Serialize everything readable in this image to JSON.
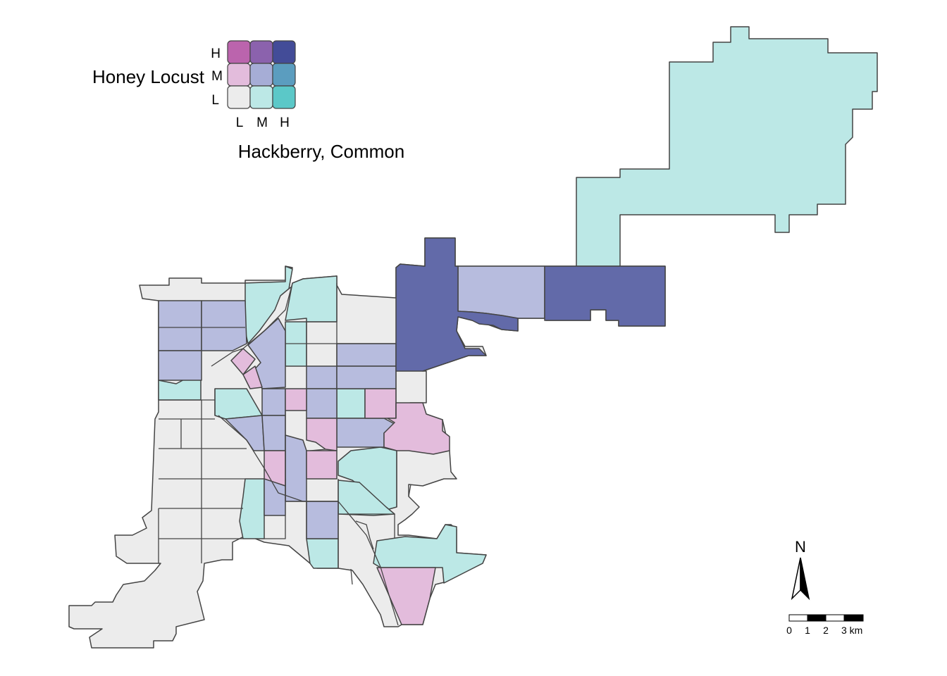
{
  "legend": {
    "y_variable": "Honey Locust",
    "x_variable": "Hackberry, Common",
    "y_levels": [
      "H",
      "M",
      "L"
    ],
    "x_levels": [
      "L",
      "M",
      "H"
    ],
    "palette": {
      "L-L": "#ececec",
      "M-L": "#bce8e6",
      "H-L": "#5bc8c8",
      "L-M": "#e3bcdc",
      "M-M": "#a6add6",
      "H-M": "#5b9dbf",
      "L-H": "#bb64ad",
      "M-H": "#8b62ad",
      "H-H": "#434c98"
    }
  },
  "map_fill_colors": {
    "low_low": "#ececec",
    "mid_low": "#bce8e6",
    "low_mid": "#e3bcdc",
    "mid_mid": "#b7bcde",
    "high_high": "#626aa9"
  },
  "north_arrow": {
    "label": "N"
  },
  "scale_bar": {
    "ticks": [
      "0",
      "1",
      "2",
      "3 km"
    ]
  }
}
